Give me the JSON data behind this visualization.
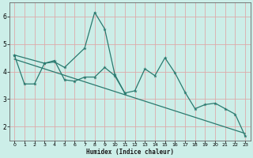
{
  "xlabel": "Humidex (Indice chaleur)",
  "bg_color": "#cceee8",
  "line_color": "#2a7a6f",
  "grid_color": "#aadddd",
  "xlim": [
    -0.5,
    23.5
  ],
  "ylim": [
    1.5,
    6.5
  ],
  "yticks": [
    2,
    3,
    4,
    5,
    6
  ],
  "xticks": [
    0,
    1,
    2,
    3,
    4,
    5,
    6,
    7,
    8,
    9,
    10,
    11,
    12,
    13,
    14,
    15,
    16,
    17,
    18,
    19,
    20,
    21,
    22,
    23
  ],
  "line1_x": [
    0,
    1,
    2,
    3,
    4,
    5,
    6,
    7,
    8,
    9,
    10,
    11,
    12,
    13,
    14,
    15,
    16,
    17,
    18,
    19,
    20,
    21,
    22,
    23
  ],
  "line1_y": [
    4.6,
    3.55,
    3.55,
    4.3,
    4.4,
    3.7,
    3.65,
    3.8,
    3.8,
    4.15,
    3.85,
    3.22,
    3.3,
    4.1,
    3.85,
    4.5,
    3.95,
    3.25,
    2.65,
    2.8,
    2.85,
    2.65,
    2.45,
    1.65
  ],
  "line2_x": [
    0,
    3,
    4,
    5,
    7,
    8,
    9,
    10,
    11
  ],
  "line2_y": [
    4.6,
    4.3,
    4.35,
    4.15,
    4.85,
    6.15,
    5.55,
    3.9,
    3.22
  ],
  "trend_x": [
    0,
    23
  ],
  "trend_y": [
    4.45,
    1.75
  ]
}
